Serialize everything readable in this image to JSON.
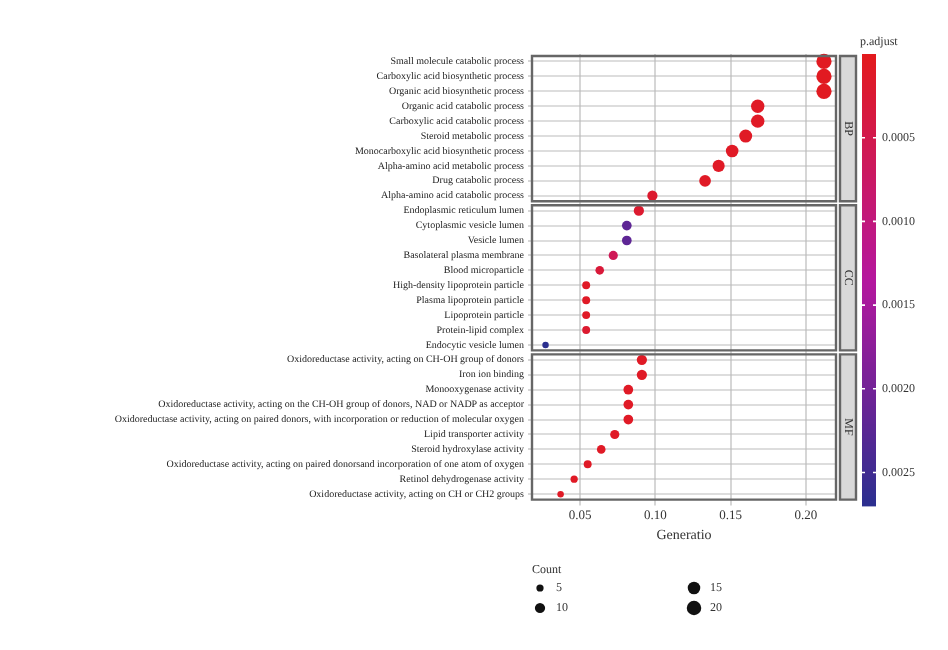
{
  "chart_data": {
    "type": "bubble",
    "orientation": "horizontal",
    "categories": [
      "Small molecule catabolic process",
      "Carboxylic acid biosynthetic process",
      "Organic acid biosynthetic process",
      "Organic acid catabolic process",
      "Carboxylic acid catabolic process",
      "Steroid metabolic process",
      "Monocarboxylic acid biosynthetic process",
      "Alpha-amino acid metabolic process",
      "Drug catabolic process",
      "Alpha-amino acid catabolic process",
      "Endoplasmic reticulum lumen",
      "Cytoplasmic vesicle lumen",
      "Vesicle lumen",
      "Basolateral plasma membrane",
      "Blood microparticle",
      "High-density lipoprotein particle",
      "Plasma lipoprotein particle",
      "Lipoprotein particle",
      "Protein-lipid complex",
      "Endocytic vesicle lumen",
      "Oxidoreductase activity, acting on CH-OH group of donors",
      "Iron ion binding",
      "Monooxygenase activity",
      "Oxidoreductase activity, acting on the CH-OH group of donors, NAD or NADP as acceptor",
      "Oxidoreductase activity, acting on paired donors, with incorporation or reduction of molecular oxygen",
      "Lipid transporter activity",
      "Steroid hydroxylase activity",
      "Oxidoreductase activity, acting on paired donorsand incorporation of one atom of oxygen",
      "Retinol dehydrogenase activity",
      "Oxidoreductase activity, acting on CH or CH2 groups"
    ],
    "values": [
      0.212,
      0.212,
      0.212,
      0.168,
      0.168,
      0.16,
      0.151,
      0.142,
      0.133,
      0.098,
      0.089,
      0.081,
      0.081,
      0.072,
      0.063,
      0.054,
      0.054,
      0.054,
      0.054,
      0.027,
      0.091,
      0.091,
      0.082,
      0.082,
      0.082,
      0.073,
      0.064,
      0.055,
      0.046,
      0.037
    ],
    "sizes": [
      22,
      22,
      22,
      17,
      17,
      16,
      15,
      14,
      13,
      10,
      10,
      9,
      9,
      8,
      7,
      6,
      6,
      6,
      6,
      4,
      10,
      10,
      9,
      9,
      9,
      8,
      7,
      6,
      5,
      4
    ],
    "cvalues": [
      5e-05,
      5e-05,
      5e-05,
      0.0001,
      0.0001,
      0.0001,
      0.0001,
      0.0001,
      0.0001,
      0.0002,
      0.0002,
      0.0022,
      0.0022,
      0.0006,
      0.0003,
      0.0001,
      0.0001,
      0.0001,
      0.0002,
      0.0027,
      0.0001,
      0.0001,
      0.0001,
      0.0001,
      0.0001,
      0.0001,
      0.0001,
      0.0001,
      0.0001,
      0.0001
    ],
    "xlim": [
      0.018,
      0.22
    ],
    "xticks": [
      {
        "value": 0.05,
        "label": "0.05"
      },
      {
        "value": 0.1,
        "label": "0.10"
      },
      {
        "value": 0.15,
        "label": "0.15"
      },
      {
        "value": 0.2,
        "label": "0.20"
      }
    ],
    "xlabel": "Generatio",
    "grid": true,
    "annotations": [
      "BP",
      "CC",
      "MF"
    ],
    "clabel": "p.adjust",
    "clim": [
      0,
      0.0027
    ],
    "cticks": [
      {
        "value": 0.0005,
        "label": "0.0005"
      },
      {
        "value": 0.001,
        "label": "0.0010"
      },
      {
        "value": 0.0015,
        "label": "0.0015"
      },
      {
        "value": 0.002,
        "label": "0.0020"
      },
      {
        "value": 0.0025,
        "label": "0.0025"
      }
    ],
    "legend_title": "Count",
    "size_legend": [
      5,
      10,
      15,
      20
    ]
  }
}
